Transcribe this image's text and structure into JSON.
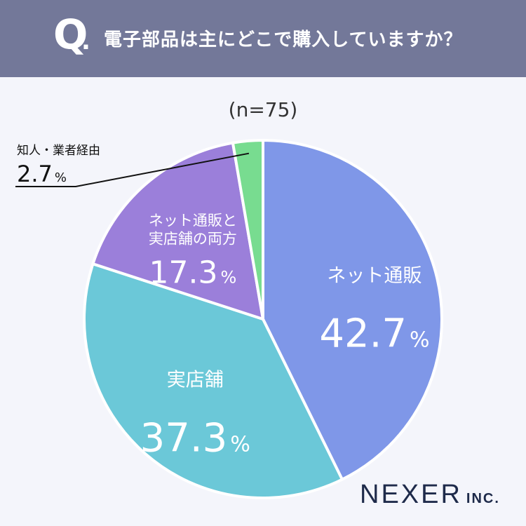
{
  "question": {
    "mark": "Q",
    "dot": ".",
    "text": "電子部品は主にどこで購入していますか？"
  },
  "sample_size": "(n=75)",
  "logo": {
    "main": "NEXER",
    "suffix": "INC."
  },
  "chart_data": {
    "type": "pie",
    "start_angle_deg": 0,
    "direction": "clockwise",
    "slices": [
      {
        "name": "ネット通販",
        "label_lines": [
          "ネット通販"
        ],
        "value": 42.7,
        "display_value": "42.7",
        "unit": "%",
        "color": "#7f97e8"
      },
      {
        "name": "実店舗",
        "label_lines": [
          "実店舗"
        ],
        "value": 37.3,
        "display_value": "37.3",
        "unit": "%",
        "color": "#6bc8d8"
      },
      {
        "name": "ネット通販と実店舗の両方",
        "label_lines": [
          "ネット通販と",
          "実店舗の両方"
        ],
        "value": 17.3,
        "display_value": "17.3",
        "unit": "%",
        "color": "#9b7fda"
      },
      {
        "name": "知人・業者経由",
        "label_lines": [
          "知人・業者経由"
        ],
        "value": 2.7,
        "display_value": "2.7",
        "unit": "%",
        "color": "#78dc90"
      }
    ]
  }
}
